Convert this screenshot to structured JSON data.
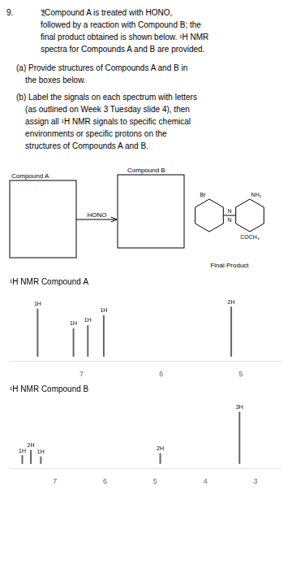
{
  "annotations": [
    "9.",
    "ⲜCompound A is treated with HONO,\nfollowed by a reaction with Compound B; the\nfinal product obtained is shown below. ¹H NMR\nspectra for Compounds A and B are provided.",
    "(a) Provide structures of Compounds A and B in\n    the boxes below.",
    "(b) Label the signals on each spectrum with letters\n    (as outlined on Week 3 Tuesday slide 4), then\n    assign all ¹H NMR signals to specific chemical\n    environments or specific protons on the\n    structures of Compounds A and B.",
    "Compound A",
    "HONO",
    "Compound B",
    "Br",
    "N",
    "N",
    "NH₂",
    "COCH₃",
    "Final Product"
  ],
  "chart_data": [
    {
      "type": "spectrum",
      "title": "¹H NMR Compound A",
      "x": [
        7.55,
        7.1,
        6.92,
        6.72,
        5.12
      ],
      "values": [
        0.88,
        0.52,
        0.58,
        0.76,
        0.92
      ],
      "value_labels": [
        "1H",
        "1H",
        "1H",
        "1H",
        "2H"
      ],
      "color": "#666666",
      "xlim": [
        7.9,
        4.5
      ],
      "xticks": [
        7,
        6,
        5
      ],
      "ylim": [
        -0.08,
        1.25
      ],
      "grid": false,
      "tick_labels": "x"
    },
    {
      "type": "spectrum",
      "title": "¹H NMR Compound B",
      "x": [
        7.65,
        7.48,
        7.28,
        4.9,
        3.32
      ],
      "values": [
        0.16,
        0.26,
        0.14,
        0.2,
        0.96
      ],
      "value_labels": [
        "1H",
        "2H",
        "1H",
        "2H",
        "3H"
      ],
      "color": "#666666",
      "xlim": [
        7.9,
        2.5
      ],
      "xticks": [
        7,
        6,
        5,
        4,
        3
      ],
      "ylim": [
        -0.08,
        1.25
      ],
      "grid": false,
      "tick_labels": "x"
    }
  ]
}
